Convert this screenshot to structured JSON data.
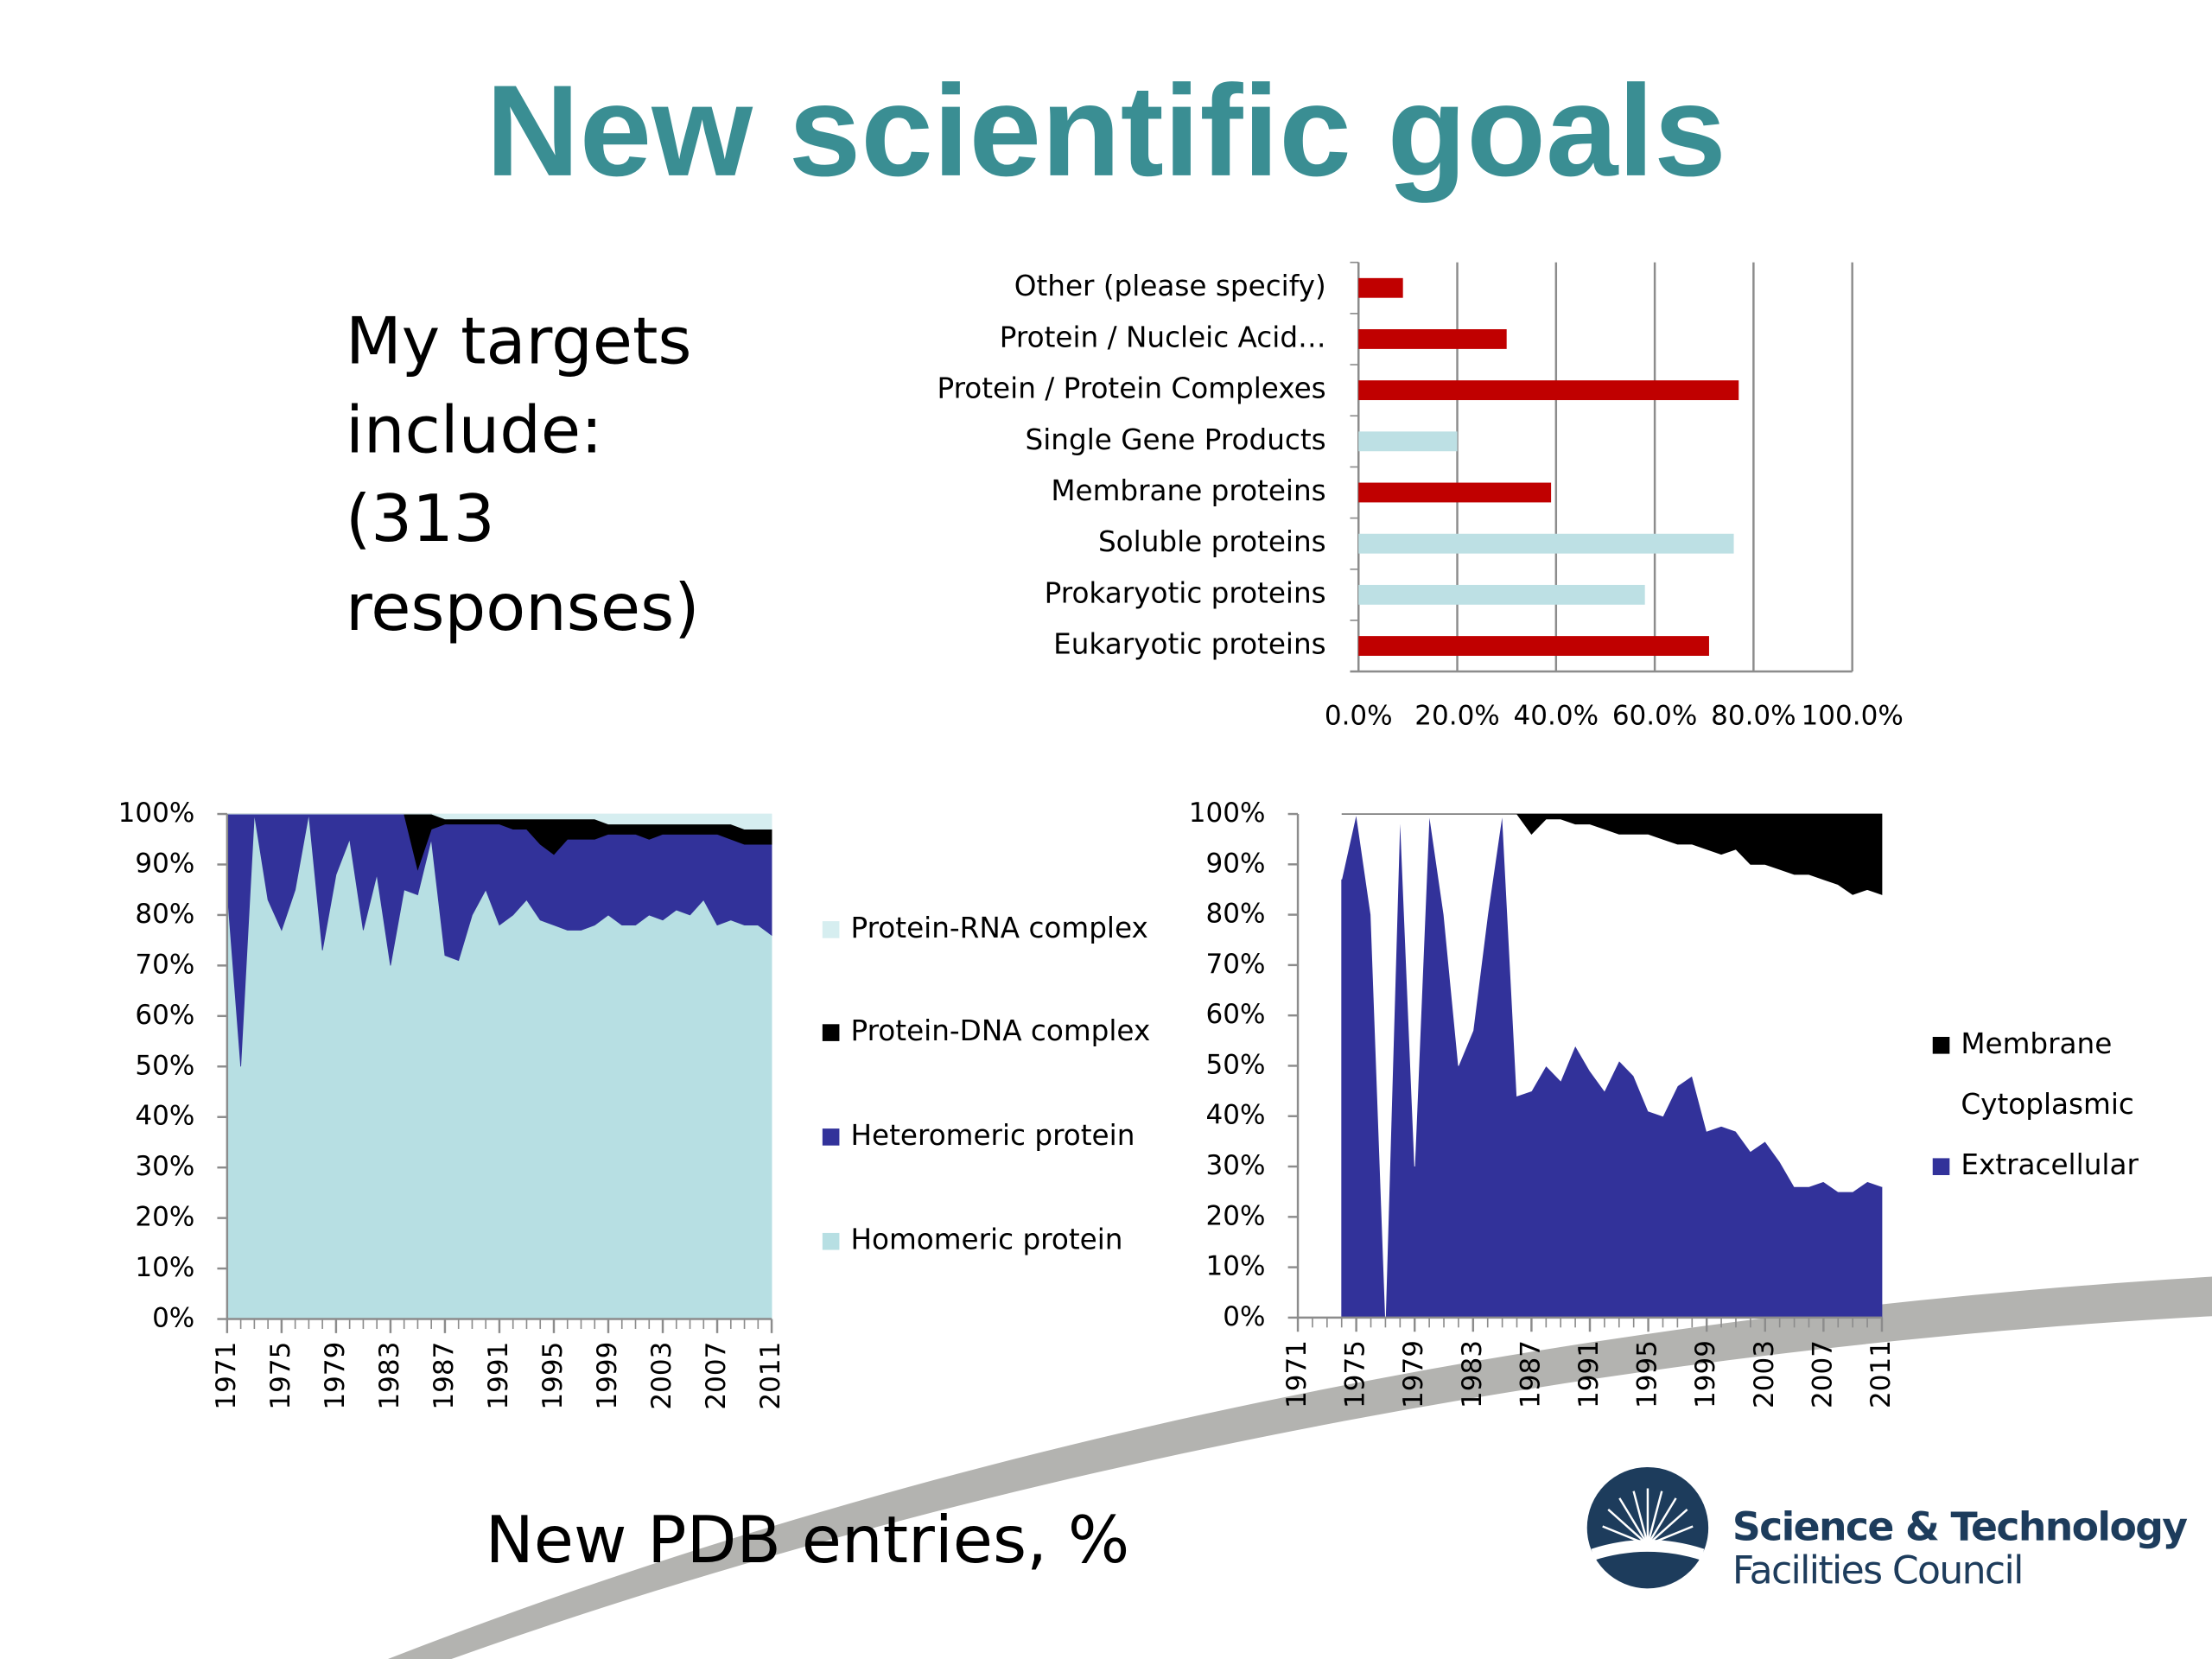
{
  "title": "New scientific goals",
  "targets_text": [
    "My targets",
    "include:",
    "(313",
    "responses)"
  ],
  "caption": "New PDB entries, %",
  "logo": {
    "line1": "Science & Technology",
    "line2": "Facilities Council"
  },
  "chart_data": [
    {
      "type": "hbar",
      "categories": [
        "Other (please specify)",
        "Protein / Nucleic Acid…",
        "Protein / Protein Complexes",
        "Single Gene Products",
        "Membrane proteins",
        "Soluble proteins",
        "Prokaryotic proteins",
        "Eukaryotic proteins"
      ],
      "values": [
        9,
        30,
        77,
        20,
        39,
        76,
        58,
        71
      ],
      "colors": [
        "#c00000",
        "#c00000",
        "#c00000",
        "#bde0e4",
        "#c00000",
        "#bde0e4",
        "#bde0e4",
        "#c00000"
      ],
      "xlim": [
        0,
        100
      ],
      "xticks": [
        {
          "value": 0,
          "label": "0.0%"
        },
        {
          "value": 20,
          "label": "20.0%"
        },
        {
          "value": 40,
          "label": "40.0%"
        },
        {
          "value": 60,
          "label": "60.0%"
        },
        {
          "value": 80,
          "label": "80.0%"
        },
        {
          "value": 100,
          "label": "100.0%"
        }
      ],
      "grid": true
    },
    {
      "type": "stacked-area",
      "x": [
        1971,
        1972,
        1973,
        1974,
        1975,
        1976,
        1977,
        1978,
        1979,
        1980,
        1981,
        1982,
        1983,
        1984,
        1985,
        1986,
        1987,
        1988,
        1989,
        1990,
        1991,
        1992,
        1993,
        1994,
        1995,
        1996,
        1997,
        1998,
        1999,
        2000,
        2001,
        2002,
        2003,
        2004,
        2005,
        2006,
        2007,
        2008,
        2009,
        2010,
        2011
      ],
      "series": [
        {
          "name": "Homomeric protein",
          "color": "#b7dfe3",
          "values": [
            85,
            50,
            100,
            83,
            77,
            85,
            100,
            73,
            88,
            95,
            77,
            88,
            70,
            85,
            84,
            95,
            72,
            71,
            80,
            85,
            78,
            80,
            83,
            79,
            78,
            77,
            77,
            78,
            80,
            78,
            78,
            80,
            79,
            81,
            80,
            83,
            78,
            79,
            78,
            78,
            76
          ]
        },
        {
          "name": "Heteromeric protein",
          "color": "#32329a",
          "values": [
            15,
            50,
            0,
            17,
            23,
            15,
            0,
            27,
            12,
            5,
            23,
            12,
            30,
            15,
            5,
            2,
            26,
            27,
            18,
            13,
            20,
            17,
            14,
            15,
            14,
            18,
            18,
            17,
            16,
            18,
            18,
            15,
            17,
            15,
            16,
            13,
            18,
            16,
            16,
            16,
            18
          ]
        },
        {
          "name": "Protein-DNA complex",
          "color": "#000000",
          "values": [
            0,
            0,
            0,
            0,
            0,
            0,
            0,
            0,
            0,
            0,
            0,
            0,
            0,
            0,
            11,
            3,
            1,
            1,
            1,
            1,
            1,
            2,
            2,
            5,
            7,
            4,
            4,
            4,
            2,
            2,
            2,
            3,
            2,
            2,
            2,
            2,
            2,
            3,
            3,
            3,
            3
          ]
        },
        {
          "name": "Protein-RNA complex",
          "color": "#d6eef0",
          "values": [
            0,
            0,
            0,
            0,
            0,
            0,
            0,
            0,
            0,
            0,
            0,
            0,
            0,
            0,
            0,
            0,
            1,
            1,
            1,
            1,
            1,
            1,
            1,
            1,
            1,
            1,
            1,
            1,
            2,
            2,
            2,
            2,
            2,
            2,
            2,
            2,
            2,
            2,
            3,
            3,
            3
          ]
        }
      ],
      "xlim": [
        1971,
        2011
      ],
      "xticks": [
        1971,
        1975,
        1979,
        1983,
        1987,
        1991,
        1995,
        1999,
        2003,
        2007,
        2011
      ],
      "ylim": [
        0,
        100
      ],
      "yticks": [
        {
          "value": 0,
          "label": "0%"
        },
        {
          "value": 10,
          "label": "10%"
        },
        {
          "value": 20,
          "label": "20%"
        },
        {
          "value": 30,
          "label": "30%"
        },
        {
          "value": 40,
          "label": "40%"
        },
        {
          "value": 50,
          "label": "50%"
        },
        {
          "value": 60,
          "label": "60%"
        },
        {
          "value": 70,
          "label": "70%"
        },
        {
          "value": 80,
          "label": "80%"
        },
        {
          "value": 90,
          "label": "90%"
        },
        {
          "value": 100,
          "label": "100%"
        }
      ],
      "grid": false,
      "legend": "right"
    },
    {
      "type": "stacked-area",
      "x": [
        1971,
        1972,
        1973,
        1974,
        1975,
        1976,
        1977,
        1978,
        1979,
        1980,
        1981,
        1982,
        1983,
        1984,
        1985,
        1986,
        1987,
        1988,
        1989,
        1990,
        1991,
        1992,
        1993,
        1994,
        1995,
        1996,
        1997,
        1998,
        1999,
        2000,
        2001,
        2002,
        2003,
        2004,
        2005,
        2006,
        2007,
        2008,
        2009,
        2010,
        2011
      ],
      "series": [
        {
          "name": "Extracellular",
          "color": "#32329a",
          "values": [
            null,
            null,
            null,
            87,
            100,
            80,
            0,
            100,
            30,
            100,
            80,
            50,
            57,
            80,
            100,
            44,
            45,
            50,
            47,
            54,
            49,
            45,
            51,
            48,
            41,
            40,
            46,
            48,
            37,
            38,
            37,
            33,
            35,
            31,
            26,
            26,
            27,
            25,
            25,
            27,
            26
          ]
        },
        {
          "name": "Cytoplasmic",
          "color": "#ffffff",
          "values": [
            null,
            null,
            null,
            13,
            0,
            20,
            100,
            0,
            70,
            0,
            20,
            50,
            43,
            20,
            0,
            56,
            51,
            49,
            52,
            44,
            49,
            52,
            45,
            48,
            55,
            55,
            48,
            46,
            56,
            54,
            56,
            57,
            55,
            58,
            62,
            62,
            60,
            61,
            59,
            58,
            58
          ]
        },
        {
          "name": "Membrane",
          "color": "#000000",
          "values": [
            null,
            null,
            null,
            0,
            0,
            0,
            0,
            0,
            0,
            0,
            0,
            0,
            0,
            0,
            0,
            0,
            4,
            1,
            1,
            2,
            2,
            3,
            4,
            4,
            4,
            5,
            6,
            6,
            7,
            8,
            7,
            10,
            10,
            11,
            12,
            12,
            13,
            14,
            16,
            15,
            16
          ]
        }
      ],
      "xlim": [
        1971,
        2011
      ],
      "xticks": [
        1971,
        1975,
        1979,
        1983,
        1987,
        1991,
        1995,
        1999,
        2003,
        2007,
        2011
      ],
      "ylim": [
        0,
        100
      ],
      "yticks": [
        {
          "value": 0,
          "label": "0%"
        },
        {
          "value": 10,
          "label": "10%"
        },
        {
          "value": 20,
          "label": "20%"
        },
        {
          "value": 30,
          "label": "30%"
        },
        {
          "value": 40,
          "label": "40%"
        },
        {
          "value": 50,
          "label": "50%"
        },
        {
          "value": 60,
          "label": "60%"
        },
        {
          "value": 70,
          "label": "70%"
        },
        {
          "value": 80,
          "label": "80%"
        },
        {
          "value": 90,
          "label": "90%"
        },
        {
          "value": 100,
          "label": "100%"
        }
      ],
      "grid": false,
      "legend": "right"
    }
  ]
}
